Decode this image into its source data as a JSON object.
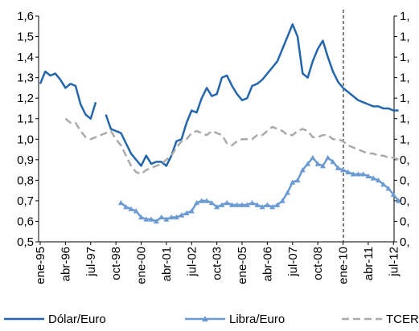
{
  "chart_data": {
    "type": "line",
    "categories": [
      "ene-95",
      null,
      null,
      null,
      null,
      "abr-96",
      null,
      null,
      null,
      null,
      "jul-97",
      null,
      null,
      null,
      null,
      "oct-98",
      null,
      null,
      null,
      null,
      "ene-00",
      null,
      null,
      null,
      null,
      "abr-01",
      null,
      null,
      null,
      null,
      "jul-02",
      null,
      null,
      null,
      null,
      "oct-03",
      null,
      null,
      null,
      null,
      "ene-05",
      null,
      null,
      null,
      null,
      "abr-06",
      null,
      null,
      null,
      null,
      "jul-07",
      null,
      null,
      null,
      null,
      "oct-08",
      null,
      null,
      null,
      null,
      "ene-10",
      null,
      null,
      null,
      null,
      "abr-11",
      null,
      null,
      null,
      null,
      "jul-12",
      null
    ],
    "series": [
      {
        "name": "Dólar/Euro",
        "color": "#2466ad",
        "marker": "none",
        "dash": false,
        "values": [
          1.27,
          1.33,
          1.31,
          1.32,
          1.29,
          1.25,
          1.27,
          1.26,
          1.17,
          1.12,
          1.1,
          1.18,
          null,
          1.12,
          1.05,
          1.04,
          1.03,
          0.98,
          0.93,
          0.9,
          0.87,
          0.92,
          0.88,
          0.89,
          0.89,
          0.87,
          0.92,
          0.99,
          1.0,
          1.08,
          1.14,
          1.13,
          1.2,
          1.25,
          1.21,
          1.22,
          1.3,
          1.31,
          1.26,
          1.22,
          1.19,
          1.2,
          1.26,
          1.27,
          1.29,
          1.32,
          1.35,
          1.38,
          1.44,
          1.5,
          1.56,
          1.5,
          1.32,
          1.3,
          1.38,
          1.44,
          1.48,
          1.4,
          1.33,
          1.28,
          1.25,
          1.23,
          1.21,
          1.19,
          1.18,
          1.17,
          1.16,
          1.16,
          1.15,
          1.15,
          1.14,
          1.14
        ]
      },
      {
        "name": "Libra/Euro",
        "color": "#6b9bd2",
        "marker": "triangle",
        "dash": false,
        "values": [
          null,
          null,
          null,
          null,
          null,
          null,
          null,
          null,
          null,
          null,
          null,
          null,
          null,
          null,
          null,
          null,
          0.69,
          0.67,
          0.66,
          0.65,
          0.62,
          0.61,
          0.61,
          0.6,
          0.62,
          0.61,
          0.62,
          0.62,
          0.63,
          0.64,
          0.65,
          0.69,
          0.7,
          0.7,
          0.69,
          0.67,
          0.68,
          0.69,
          0.68,
          0.68,
          0.68,
          0.68,
          0.69,
          0.68,
          0.67,
          0.68,
          0.67,
          0.68,
          0.7,
          0.74,
          0.79,
          0.8,
          0.85,
          0.88,
          0.91,
          0.88,
          0.87,
          0.91,
          0.89,
          0.86,
          0.85,
          0.84,
          0.83,
          0.83,
          0.83,
          0.82,
          0.81,
          0.8,
          0.78,
          0.76,
          0.73,
          0.7
        ]
      },
      {
        "name": "TCER",
        "color": "#aaaaaa",
        "marker": "none",
        "dash": true,
        "values": [
          null,
          null,
          null,
          null,
          null,
          1.1,
          1.08,
          1.08,
          1.04,
          1.01,
          1.0,
          1.01,
          1.02,
          1.03,
          1.04,
          1.0,
          0.97,
          0.92,
          0.87,
          0.84,
          0.83,
          0.85,
          0.86,
          0.87,
          0.88,
          0.9,
          0.92,
          0.96,
          0.99,
          1.0,
          1.03,
          1.04,
          1.03,
          1.02,
          1.04,
          1.03,
          1.02,
          0.98,
          0.97,
          0.99,
          1.0,
          1.0,
          1.0,
          1.02,
          1.02,
          1.04,
          1.06,
          1.05,
          1.04,
          1.02,
          1.02,
          1.04,
          1.05,
          1.04,
          1.01,
          1.01,
          1.02,
          1.02,
          1.0,
          1.0,
          0.99,
          0.97,
          0.96,
          0.95,
          0.94,
          0.93,
          0.93,
          0.92,
          0.92,
          0.91,
          0.91,
          0.9
        ]
      }
    ],
    "ylim": [
      0.5,
      1.6
    ],
    "yticks": [
      {
        "value": 0.5,
        "label": "0,5"
      },
      {
        "value": 0.6,
        "label": "0,6"
      },
      {
        "value": 0.7,
        "label": "0,7"
      },
      {
        "value": 0.8,
        "label": "0,8"
      },
      {
        "value": 0.9,
        "label": "0,9"
      },
      {
        "value": 1.0,
        "label": "1,0"
      },
      {
        "value": 1.1,
        "label": "1,1"
      },
      {
        "value": 1.2,
        "label": "1,2"
      },
      {
        "value": 1.3,
        "label": "1,3"
      },
      {
        "value": 1.4,
        "label": "1,4"
      },
      {
        "value": 1.5,
        "label": "1,5"
      },
      {
        "value": 1.6,
        "label": "1,6"
      }
    ],
    "y2lim": [
      0.5,
      1.6
    ],
    "y2ticks": [
      {
        "value": 0.5,
        "label": "0,"
      },
      {
        "value": 0.6,
        "label": "0,"
      },
      {
        "value": 0.7,
        "label": "0,"
      },
      {
        "value": 0.8,
        "label": "0,"
      },
      {
        "value": 0.9,
        "label": "0,"
      },
      {
        "value": 1.0,
        "label": "1,"
      },
      {
        "value": 1.1,
        "label": "1,"
      },
      {
        "value": 1.2,
        "label": "1,"
      },
      {
        "value": 1.3,
        "label": "1,"
      },
      {
        "value": 1.4,
        "label": "1,"
      },
      {
        "value": 1.5,
        "label": "1,"
      },
      {
        "value": 1.6,
        "label": "1,"
      }
    ],
    "grid": false,
    "legend": "bottom"
  }
}
